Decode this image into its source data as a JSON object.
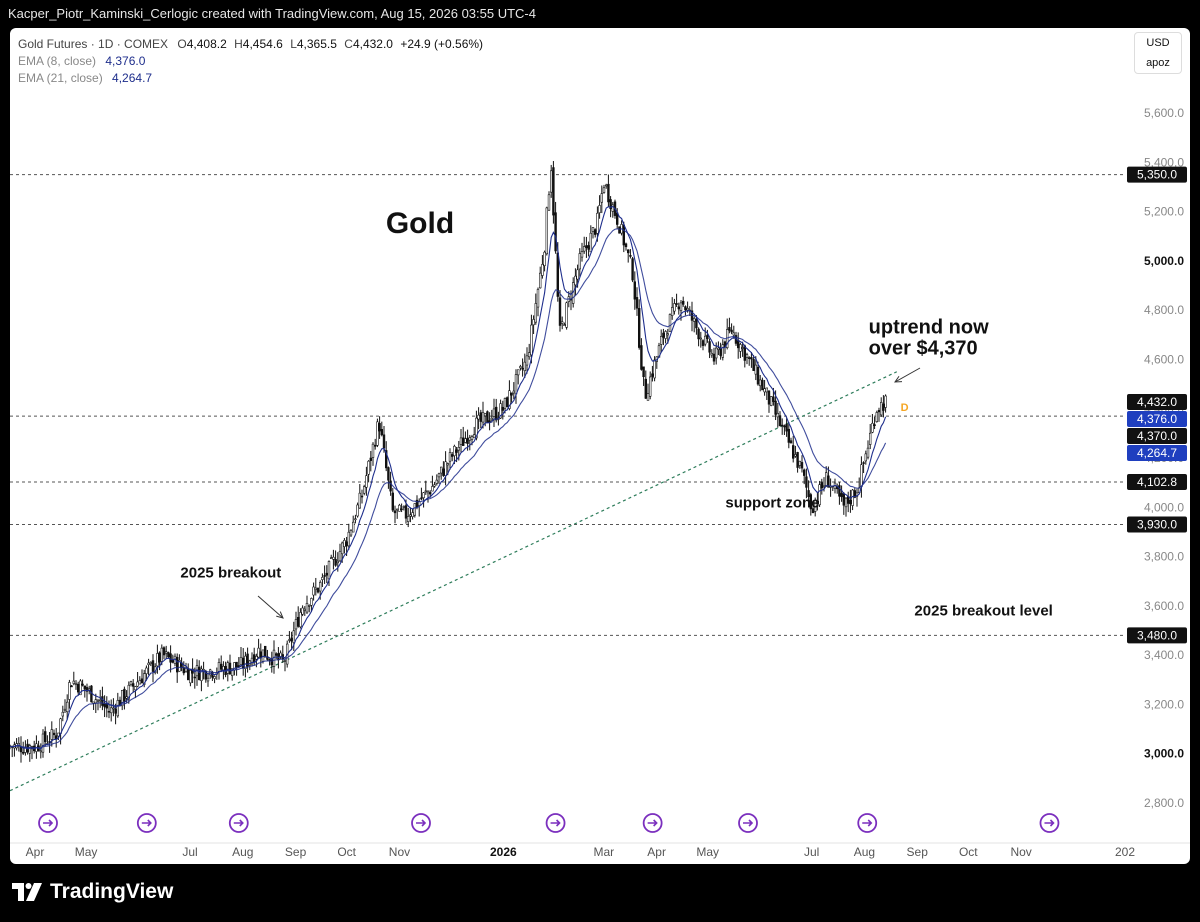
{
  "header": {
    "credit": "Kacper_Piotr_Kaminski_Cerlogic created with TradingView.com, Aug 15, 2026 03:55 UTC-4"
  },
  "legend": {
    "symbol": "Gold Futures · 1D · COMEX",
    "o_label": "O",
    "o": "4,408.2",
    "h_label": "H",
    "h": "4,454.6",
    "l_label": "L",
    "l": "4,365.5",
    "c_label": "C",
    "c": "4,432.0",
    "change": "+24.9 (+0.56%)",
    "ema8_label": "EMA (8, close)",
    "ema8": "4,376.0",
    "ema21_label": "EMA (21, close)",
    "ema21": "4,264.7"
  },
  "units": {
    "currency": "USD",
    "mode": "apoz"
  },
  "footer": {
    "brand": "TradingView"
  },
  "colors": {
    "ema_blue": "#1e2e8c",
    "candle": "#111111",
    "trendline": "#2e7d5b",
    "badge_orange": "#f5a623"
  },
  "chart_data": {
    "type": "candlestick",
    "title": "Gold",
    "x_range": [
      "2025-04-01",
      "2027-01-01"
    ],
    "ylim": [
      2700,
      5750
    ],
    "y_ticks": [
      2800,
      3000,
      3200,
      3400,
      3600,
      3800,
      4000,
      4200,
      4400,
      4600,
      4800,
      5000,
      5200,
      5400,
      5600
    ],
    "y_tick_labels": [
      "2,800.0",
      "3,000.0",
      "3,200.0",
      "3,400.0",
      "3,600.0",
      "3,800.0",
      "4,000.0",
      "4,200.0",
      "4,400.0",
      "4,600.0",
      "4,800.0",
      "5,000.0",
      "5,200.0",
      "5,400.0",
      "5,600.0"
    ],
    "x_ticks": [
      {
        "date": "2025-04-01",
        "label": "Apr"
      },
      {
        "date": "2025-05-01",
        "label": "May"
      },
      {
        "date": "2025-07-01",
        "label": "Jul"
      },
      {
        "date": "2025-08-01",
        "label": "Aug"
      },
      {
        "date": "2025-09-01",
        "label": "Sep"
      },
      {
        "date": "2025-10-01",
        "label": "Oct"
      },
      {
        "date": "2025-11-01",
        "label": "Nov"
      },
      {
        "date": "2026-01-01",
        "label": "2026",
        "bold": true
      },
      {
        "date": "2026-03-01",
        "label": "Mar"
      },
      {
        "date": "2026-04-01",
        "label": "Apr"
      },
      {
        "date": "2026-05-01",
        "label": "May"
      },
      {
        "date": "2026-07-01",
        "label": "Jul"
      },
      {
        "date": "2026-08-01",
        "label": "Aug"
      },
      {
        "date": "2026-09-01",
        "label": "Sep"
      },
      {
        "date": "2026-10-01",
        "label": "Oct"
      },
      {
        "date": "2026-11-01",
        "label": "Nov"
      },
      {
        "date": "2027-01-01",
        "label": "202"
      }
    ],
    "price_series": [
      {
        "date": "2025-04-01",
        "close": 3030
      },
      {
        "date": "2025-04-14",
        "close": 3080
      },
      {
        "date": "2025-04-22",
        "close": 3300
      },
      {
        "date": "2025-05-01",
        "close": 3260
      },
      {
        "date": "2025-05-15",
        "close": 3170
      },
      {
        "date": "2025-06-01",
        "close": 3300
      },
      {
        "date": "2025-06-15",
        "close": 3400
      },
      {
        "date": "2025-07-01",
        "close": 3330
      },
      {
        "date": "2025-07-15",
        "close": 3340
      },
      {
        "date": "2025-08-01",
        "close": 3360
      },
      {
        "date": "2025-08-10",
        "close": 3420
      },
      {
        "date": "2025-08-25",
        "close": 3370
      },
      {
        "date": "2025-09-05",
        "close": 3600
      },
      {
        "date": "2025-09-15",
        "close": 3680
      },
      {
        "date": "2025-10-01",
        "close": 3870
      },
      {
        "date": "2025-10-10",
        "close": 4050
      },
      {
        "date": "2025-10-20",
        "close": 4350
      },
      {
        "date": "2025-10-28",
        "close": 3980
      },
      {
        "date": "2025-11-05",
        "close": 3970
      },
      {
        "date": "2025-11-20",
        "close": 4080
      },
      {
        "date": "2025-12-01",
        "close": 4200
      },
      {
        "date": "2025-12-15",
        "close": 4330
      },
      {
        "date": "2026-01-01",
        "close": 4400
      },
      {
        "date": "2026-01-15",
        "close": 4600
      },
      {
        "date": "2026-01-25",
        "close": 5050
      },
      {
        "date": "2026-01-29",
        "close": 5400
      },
      {
        "date": "2026-02-03",
        "close": 4700
      },
      {
        "date": "2026-02-15",
        "close": 5000
      },
      {
        "date": "2026-02-25",
        "close": 5150
      },
      {
        "date": "2026-03-01",
        "close": 5320
      },
      {
        "date": "2026-03-10",
        "close": 5150
      },
      {
        "date": "2026-03-18",
        "close": 4950
      },
      {
        "date": "2026-03-25",
        "close": 4450
      },
      {
        "date": "2026-04-05",
        "close": 4700
      },
      {
        "date": "2026-04-15",
        "close": 4850
      },
      {
        "date": "2026-04-25",
        "close": 4720
      },
      {
        "date": "2026-05-05",
        "close": 4600
      },
      {
        "date": "2026-05-15",
        "close": 4720
      },
      {
        "date": "2026-05-25",
        "close": 4600
      },
      {
        "date": "2026-06-05",
        "close": 4450
      },
      {
        "date": "2026-06-15",
        "close": 4300
      },
      {
        "date": "2026-06-25",
        "close": 4150
      },
      {
        "date": "2026-07-01",
        "close": 4000
      },
      {
        "date": "2026-07-10",
        "close": 4120
      },
      {
        "date": "2026-07-20",
        "close": 4000
      },
      {
        "date": "2026-07-28",
        "close": 4080
      },
      {
        "date": "2026-08-03",
        "close": 4250
      },
      {
        "date": "2026-08-08",
        "close": 4400
      },
      {
        "date": "2026-08-14",
        "close": 4432
      }
    ],
    "ema_8": {
      "name": "EMA (8, close)",
      "last": 4376.0
    },
    "ema_21": {
      "name": "EMA (21, close)",
      "last": 4264.7
    },
    "horizontal_levels": [
      {
        "value": 5350.0,
        "label": "5,350.0"
      },
      {
        "value": 4370.0,
        "label": "4,370.0"
      },
      {
        "value": 4102.8,
        "label": "4,102.8"
      },
      {
        "value": 3930.0,
        "label": "3,930.0"
      },
      {
        "value": 3480.0,
        "label": "3,480.0"
      }
    ],
    "price_badges": [
      {
        "value": 4432.0,
        "label": "4,432.0",
        "style": "black"
      },
      {
        "value": 4376.0,
        "label": "4,376.0",
        "style": "blue"
      },
      {
        "value": 4370.0,
        "label": "4,370.0",
        "style": "black"
      },
      {
        "value": 4264.7,
        "label": "4,264.7",
        "style": "blue"
      }
    ],
    "trendline": {
      "from": {
        "date": "2025-04-01",
        "value": 2850
      },
      "to": {
        "date": "2026-08-20",
        "value": 4550
      }
    },
    "annotations": [
      {
        "text": "2025 breakout",
        "date": "2025-07-25",
        "value": 3715
      },
      {
        "text": "support zone",
        "date": "2026-06-08",
        "value": 4000
      },
      {
        "text": "2025 breakout level",
        "date": "2026-10-10",
        "value": 3560
      },
      {
        "text": "uptrend now",
        "date": "2026-10-10",
        "value": 4705
      },
      {
        "text": "over $4,370",
        "date": "2026-10-10",
        "value": 4620
      }
    ],
    "dividend_marker": "D",
    "event_marker_dates": [
      "2025-04-11",
      "2025-06-08",
      "2025-08-01",
      "2025-11-16",
      "2026-02-03",
      "2026-04-01",
      "2026-05-27",
      "2026-08-05",
      "2026-11-20"
    ]
  }
}
